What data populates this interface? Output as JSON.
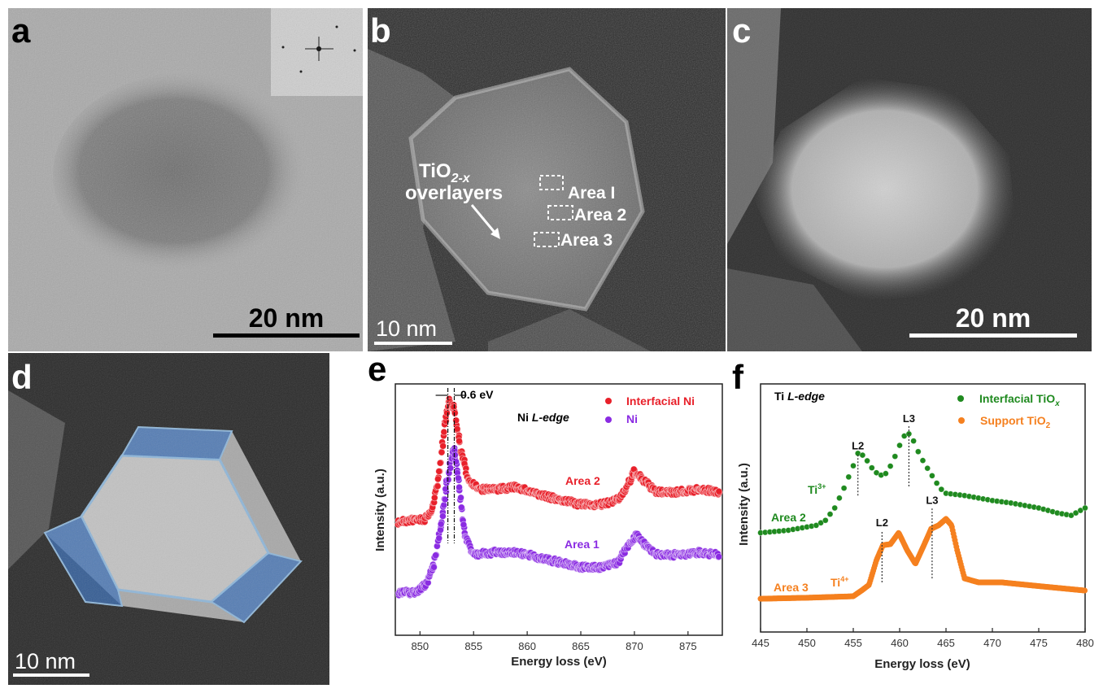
{
  "panels": {
    "a": {
      "letter": "a",
      "scale_bar": "20 nm"
    },
    "b": {
      "letter": "b",
      "scale_bar": "10 nm",
      "annotation_main": "TiO",
      "annotation_sub": "2-x",
      "annotation_line2": "overlayers",
      "areas": [
        "Area I",
        "Area 2",
        "Area 3"
      ]
    },
    "c": {
      "letter": "c",
      "scale_bar": "20 nm"
    },
    "d": {
      "letter": "d",
      "scale_bar": "10 nm"
    },
    "e": {
      "letter": "e"
    },
    "f": {
      "letter": "f"
    }
  },
  "colors": {
    "red": "#e8202a",
    "purple": "#8a2be2",
    "green": "#1f8a1f",
    "orange": "#f5801f",
    "facet_blue": "#3a6fb8"
  },
  "chart_data": [
    {
      "type": "scatter",
      "panel": "e",
      "title": "Ni L-edge",
      "xlabel": "Energy loss (eV)",
      "ylabel": "Intensity (a.u.)",
      "xlim": [
        847.7,
        878.2
      ],
      "ylim": [
        0,
        100
      ],
      "xticks": [
        850,
        855,
        860,
        865,
        870,
        875
      ],
      "annotation": "0.6 eV",
      "peak_markers": [
        852.6,
        853.2
      ],
      "legend": [
        {
          "label": "Interfacial Ni",
          "color": "#e8202a"
        },
        {
          "label": "Ni",
          "color": "#8a2be2"
        }
      ],
      "legend_position": "top-right",
      "series": [
        {
          "name": "Interfacial Ni",
          "curve_label": "Area 2",
          "color": "#e8202a",
          "x": [
            848,
            849.5,
            850.5,
            851.2,
            851.8,
            852.3,
            852.7,
            853.2,
            853.8,
            854.5,
            855.5,
            857,
            859,
            861,
            863,
            865,
            867,
            868.5,
            869.3,
            870,
            871,
            872,
            874,
            876,
            878
          ],
          "y": [
            45,
            46,
            46,
            51,
            65,
            84,
            93,
            90,
            74,
            62,
            58,
            58,
            59,
            56,
            54,
            52,
            52,
            54,
            59,
            65,
            61,
            57,
            57,
            58,
            57
          ]
        },
        {
          "name": "Ni",
          "curve_label": "Area 1",
          "color": "#8a2be2",
          "x": [
            848,
            849.5,
            850.5,
            851.3,
            851.9,
            852.4,
            852.9,
            853.2,
            853.6,
            853.9,
            854.2,
            855,
            857,
            859,
            861,
            863,
            865,
            867,
            868.5,
            869.3,
            870.2,
            871,
            872,
            874,
            876,
            878
          ],
          "y": [
            17,
            17,
            20,
            28,
            42,
            58,
            70,
            74,
            62,
            50,
            40,
            32,
            33,
            33,
            31,
            29,
            27,
            27,
            29,
            35,
            40,
            36,
            32,
            32,
            33,
            32
          ]
        }
      ]
    },
    {
      "type": "scatter",
      "panel": "f",
      "title": "Ti L-edge",
      "xlabel": "Energy loss (eV)",
      "ylabel": "Intensity (a.u.)",
      "xlim": [
        445,
        480
      ],
      "ylim": [
        0,
        100
      ],
      "xticks": [
        445,
        450,
        455,
        460,
        465,
        470,
        475,
        480
      ],
      "legend": [
        {
          "label": "Interfacial TiO",
          "sub": "x",
          "color": "#1f8a1f"
        },
        {
          "label": "Support TiO",
          "sub": "2",
          "color": "#f5801f"
        }
      ],
      "legend_position": "top-right",
      "series": [
        {
          "name": "Interfacial TiOx",
          "curve_label": "Area 2",
          "ion_label": "Ti",
          "ion_sup": "3+",
          "color": "#1f8a1f",
          "x": [
            445,
            448,
            451,
            452,
            453,
            454,
            455,
            455.5,
            456.2,
            456.8,
            457.8,
            458.6,
            459.3,
            460.2,
            460.8,
            461.5,
            462.2,
            463,
            464,
            464.8,
            467,
            470,
            472,
            475,
            477,
            478.5,
            480
          ],
          "y": [
            40,
            41,
            43,
            45,
            50,
            58,
            67,
            72,
            71,
            67,
            63,
            64,
            69,
            77,
            81,
            77,
            71,
            66,
            60,
            56,
            55,
            53,
            52,
            50,
            48,
            47,
            50
          ],
          "markers": [
            {
              "label": "L2",
              "x": 455.5,
              "y": [
                55,
                72
              ]
            },
            {
              "label": "L3",
              "x": 461,
              "y": [
                58.7,
                83
              ]
            }
          ]
        },
        {
          "name": "Support TiO2",
          "curve_label": "Area 3",
          "ion_label": "Ti",
          "ion_sup": "4+",
          "color": "#f5801f",
          "x": [
            445,
            450,
            455,
            456,
            456.7,
            457.5,
            458.2,
            459,
            459.9,
            460.8,
            461.7,
            462.5,
            463.4,
            464.2,
            465,
            465.6,
            466.2,
            467,
            468.5,
            471,
            475,
            480
          ],
          "y": [
            13.4,
            13.8,
            14.4,
            17,
            19,
            29,
            35,
            35.4,
            40,
            33,
            27.5,
            34,
            41.6,
            43,
            45.6,
            43,
            33,
            21.6,
            20,
            20,
            18.5,
            16.7
          ],
          "markers": [
            {
              "label": "L2",
              "x": 458.1,
              "y": [
                20,
                41
              ]
            },
            {
              "label": "L3",
              "x": 463.5,
              "y": [
                21.6,
                50
              ]
            }
          ]
        }
      ]
    }
  ]
}
